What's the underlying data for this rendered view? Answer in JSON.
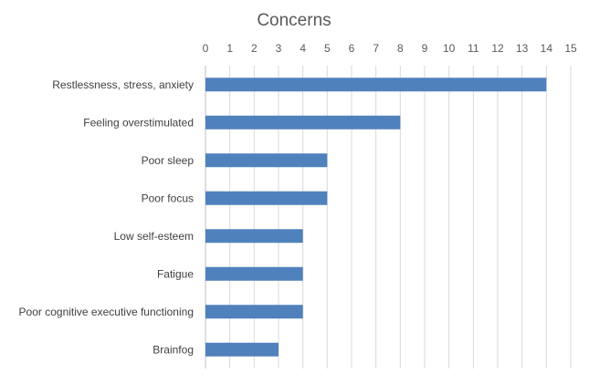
{
  "chart_data": {
    "type": "bar",
    "orientation": "horizontal",
    "title": "Concerns",
    "xlabel": "",
    "ylabel": "",
    "categories": [
      "Restlessness, stress, anxiety",
      "Feeling overstimulated",
      "Poor sleep",
      "Poor focus",
      "Low self-esteem",
      "Fatigue",
      "Poor cognitive executive functioning",
      "Brainfog"
    ],
    "values": [
      14,
      8,
      5,
      5,
      4,
      4,
      4,
      3
    ],
    "xlim": [
      0,
      15
    ],
    "x_ticks": [
      "0",
      "1",
      "2",
      "3",
      "4",
      "5",
      "6",
      "7",
      "8",
      "9",
      "10",
      "11",
      "12",
      "13",
      "14",
      "15"
    ],
    "x_axis_position": "top",
    "grid": true,
    "legend": "none",
    "bar_color": "#4f81bd"
  }
}
